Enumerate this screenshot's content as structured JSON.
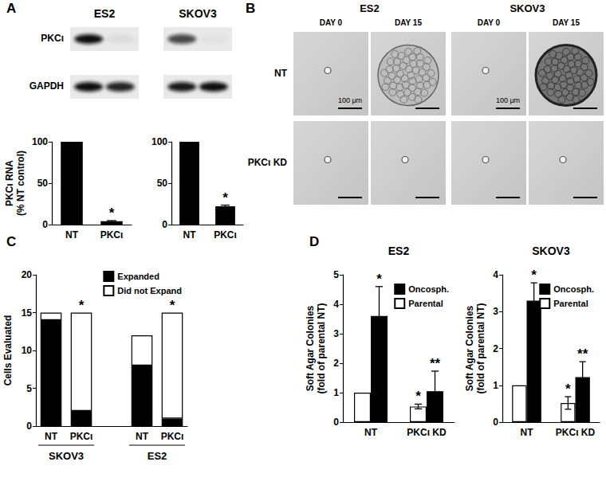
{
  "panel_labels": [
    "A",
    "B",
    "C",
    "D"
  ],
  "blots": {
    "cell_lines": [
      "ES2",
      "SKOV3"
    ],
    "rows": [
      {
        "label": "PKCι",
        "intensity": [
          [
            1,
            0.05
          ],
          [
            0.75,
            0.03
          ]
        ]
      },
      {
        "label": "GAPDH",
        "intensity": [
          [
            1,
            0.9
          ],
          [
            0.95,
            1
          ]
        ]
      }
    ]
  },
  "micrographs": {
    "cell_lines": [
      "ES2",
      "SKOV3"
    ],
    "days": [
      "DAY 0",
      "DAY 15"
    ],
    "rows": [
      {
        "label": "NT",
        "expanded": [
          false,
          true,
          false,
          true
        ]
      },
      {
        "label": "PKCι KD",
        "expanded": [
          false,
          false,
          false,
          false
        ]
      }
    ],
    "scale_bar_label": "100 μm"
  },
  "chart_data": [
    {
      "type": "bar",
      "categories": [
        "NT",
        "PKCι"
      ],
      "values": [
        100,
        4
      ],
      "errors": [
        null,
        0.8
      ],
      "significance": [
        null,
        "*"
      ],
      "color": "#000000",
      "ylabel": "PKCι RNA\n(% NT control)",
      "ylim": [
        0,
        100
      ],
      "yticks": [
        0,
        50,
        100
      ]
    },
    {
      "type": "bar",
      "categories": [
        "NT",
        "PKCι"
      ],
      "values": [
        100,
        22
      ],
      "errors": [
        null,
        1.5
      ],
      "significance": [
        null,
        "*"
      ],
      "color": "#000000",
      "ylim": [
        0,
        100
      ],
      "yticks": [
        0,
        50,
        100
      ]
    },
    {
      "type": "bar",
      "stacked": true,
      "categories": [
        "NT",
        "PKCι",
        null,
        "NT",
        "PKCι"
      ],
      "groups": [
        {
          "label": "SKOV3",
          "categories": [
            0,
            1
          ]
        },
        {
          "label": "ES2",
          "categories": [
            3,
            4
          ]
        }
      ],
      "series": [
        {
          "name": "Expanded",
          "color": "#000000",
          "values": [
            14,
            2,
            null,
            8,
            1
          ]
        },
        {
          "name": "Did not Expand",
          "color": "#ffffff",
          "values": [
            1,
            13,
            null,
            4,
            14
          ]
        }
      ],
      "significance": [
        null,
        "*",
        null,
        null,
        "*"
      ],
      "ylabel": "Cells Evaluated",
      "ylim": [
        0,
        20
      ],
      "yticks": [
        0,
        5,
        10,
        15,
        20
      ],
      "legend": "top-right"
    },
    {
      "type": "bar",
      "title": "ES2",
      "categories": [
        "NT",
        "PKCι KD"
      ],
      "series": [
        {
          "name": "Parental",
          "color": "#ffffff",
          "values": [
            1,
            0.53
          ],
          "errors": [
            null,
            0.08
          ],
          "significance": [
            null,
            "*"
          ]
        },
        {
          "name": "Oncosph.",
          "color": "#000000",
          "values": [
            3.6,
            1.05
          ],
          "errors": [
            1.0,
            0.68
          ],
          "significance": [
            "*",
            "**"
          ]
        }
      ],
      "ylabel": "Soft Agar Colonies\n(fold of parental NT)",
      "ylim": [
        0,
        5
      ],
      "yticks": [
        0,
        1,
        2,
        3,
        4,
        5
      ],
      "legend": "top-right"
    },
    {
      "type": "bar",
      "title": "SKOV3",
      "categories": [
        "NT",
        "PKCι KD"
      ],
      "series": [
        {
          "name": "Parental",
          "color": "#ffffff",
          "values": [
            1,
            0.52
          ],
          "errors": [
            null,
            0.17
          ],
          "significance": [
            null,
            "*"
          ]
        },
        {
          "name": "Oncosph.",
          "color": "#000000",
          "values": [
            3.3,
            1.22
          ],
          "errors": [
            0.48,
            0.42
          ],
          "significance": [
            "*",
            "**"
          ]
        }
      ],
      "ylabel": "Soft Agar Colonies\n(fold of parental NT)",
      "ylim": [
        0,
        4
      ],
      "yticks": [
        0,
        1,
        2,
        3,
        4
      ],
      "legend": "top-right"
    }
  ]
}
